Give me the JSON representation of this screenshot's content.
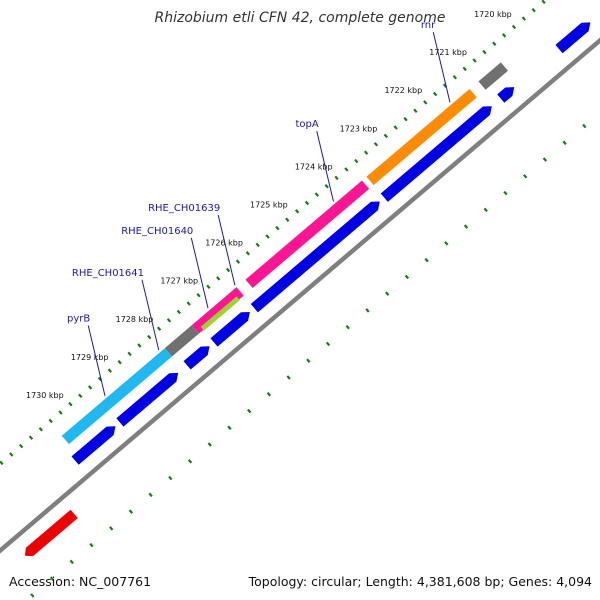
{
  "title": "Rhizobium etli CFN 42, complete genome",
  "footer": {
    "accession": "Accession: NC_007761",
    "summary": "Topology: circular; Length: 4,381,608 bp; Genes: 4,094"
  },
  "colors": {
    "backbone": "#7f7f7f",
    "cds_forward": "#0000e6",
    "rrna": "#ff8c00",
    "trna": "#ff1493",
    "highlight_cyan": "#20b8f0",
    "highlight_green": "#9ad62a",
    "gray_gene": "#707070",
    "red_gene": "#ee0000",
    "ticks": "#1a7a1a"
  },
  "chart_data": {
    "type": "genome-map",
    "scale_labels": [
      {
        "kbp": 1720,
        "text": "1720 kbp"
      },
      {
        "kbp": 1721,
        "text": "1721 kbp"
      },
      {
        "kbp": 1722,
        "text": "1722 kbp"
      },
      {
        "kbp": 1723,
        "text": "1723 kbp"
      },
      {
        "kbp": 1724,
        "text": "1724 kbp"
      },
      {
        "kbp": 1725,
        "text": "1725 kbp"
      },
      {
        "kbp": 1726,
        "text": "1726 kbp"
      },
      {
        "kbp": 1727,
        "text": "1727 kbp"
      },
      {
        "kbp": 1728,
        "text": "1728 kbp"
      },
      {
        "kbp": 1729,
        "text": "1729 kbp"
      },
      {
        "kbp": 1730,
        "text": "1730 kbp"
      }
    ],
    "gene_labels": [
      {
        "name": "rnr",
        "kbp": 1721.8
      },
      {
        "name": "topA",
        "kbp": 1724.4
      },
      {
        "name": "RHE_CH01639",
        "kbp": 1726.6
      },
      {
        "name": "RHE_CH01640",
        "kbp": 1727.2
      },
      {
        "name": "RHE_CH01641",
        "kbp": 1728.3
      },
      {
        "name": "pyrB",
        "kbp": 1729.5
      }
    ],
    "outer_features": [
      {
        "start_kbp": 1720.7,
        "end_kbp": 1721.2,
        "color": "gray_gene"
      },
      {
        "start_kbp": 1721.4,
        "end_kbp": 1723.7,
        "color": "rrna"
      },
      {
        "start_kbp": 1723.8,
        "end_kbp": 1726.4,
        "color": "trna"
      },
      {
        "start_kbp": 1726.6,
        "end_kbp": 1727.6,
        "color": "trna"
      },
      {
        "start_kbp": 1726.7,
        "end_kbp": 1727.5,
        "color": "highlight_green"
      },
      {
        "start_kbp": 1727.6,
        "end_kbp": 1728.2,
        "color": "gray_gene"
      },
      {
        "start_kbp": 1728.2,
        "end_kbp": 1730.5,
        "color": "highlight_cyan"
      }
    ],
    "inner_features": [
      {
        "start_kbp": 1719.1,
        "end_kbp": 1719.8,
        "color": "cds_forward"
      },
      {
        "start_kbp": 1720.8,
        "end_kbp": 1721.1,
        "color": "cds_forward"
      },
      {
        "start_kbp": 1721.3,
        "end_kbp": 1723.7,
        "color": "cds_forward"
      },
      {
        "start_kbp": 1723.8,
        "end_kbp": 1726.6,
        "color": "cds_forward"
      },
      {
        "start_kbp": 1726.7,
        "end_kbp": 1727.5,
        "color": "cds_forward"
      },
      {
        "start_kbp": 1727.6,
        "end_kbp": 1728.1,
        "color": "cds_forward"
      },
      {
        "start_kbp": 1728.3,
        "end_kbp": 1729.6,
        "color": "cds_forward"
      },
      {
        "start_kbp": 1729.7,
        "end_kbp": 1730.6,
        "color": "cds_forward"
      }
    ],
    "reverse_features": [
      {
        "start_kbp": 1731.2,
        "end_kbp": 1732.3,
        "color": "red_gene"
      }
    ]
  }
}
